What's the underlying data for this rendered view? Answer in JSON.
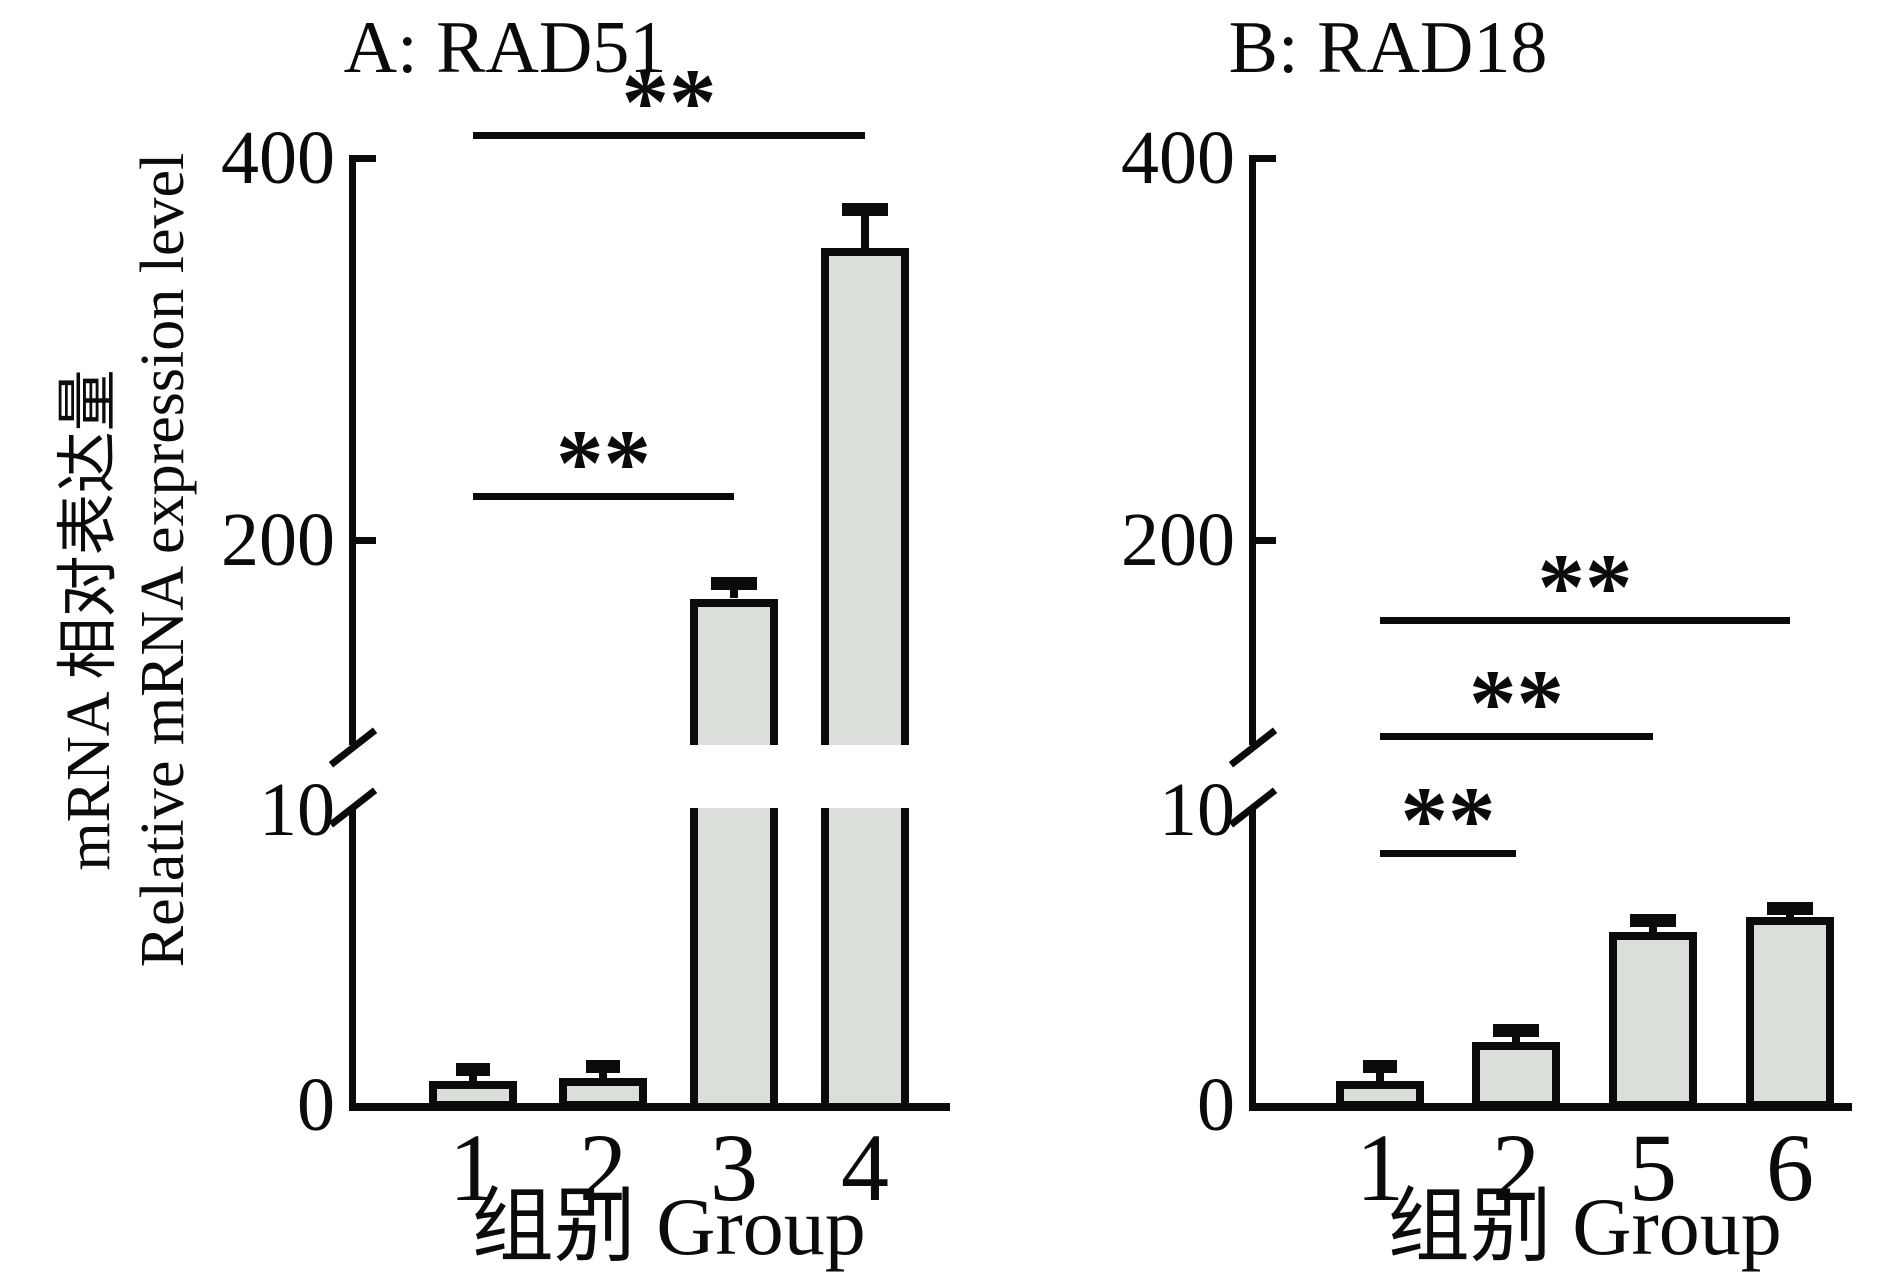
{
  "figure": {
    "background": "#ffffff",
    "ink_color": "#0b0b0b",
    "bar_fill_color": "#dadfda",
    "y_axis_label_zh": "mRNA 相对表达量",
    "y_axis_label_en": "Relative mRNA expression level"
  },
  "chart_data": [
    {
      "panel": "A",
      "type": "bar",
      "title": "A: RAD51",
      "xlabel": "组别 Group",
      "ylabel": "mRNA 相对表达量 Relative mRNA expression level",
      "categories": [
        "1",
        "2",
        "3",
        "4"
      ],
      "values": [
        0.8,
        0.9,
        170,
        350
      ],
      "errors": [
        0.4,
        0.4,
        8,
        20
      ],
      "y_axis": {
        "type": "broken",
        "tick_labels": [
          "400",
          "200",
          "10",
          "0"
        ],
        "lower_range": [
          0,
          10
        ],
        "upper_range": [
          200,
          400
        ]
      },
      "significance": [
        {
          "between": [
            "1",
            "3"
          ],
          "label": "**"
        },
        {
          "between": [
            "1",
            "4"
          ],
          "label": "**"
        }
      ],
      "grid": false,
      "legend_position": "none"
    },
    {
      "panel": "B",
      "type": "bar",
      "title": "B: RAD18",
      "xlabel": "组别 Group",
      "ylabel": "mRNA 相对表达量 Relative mRNA expression level",
      "categories": [
        "1",
        "2",
        "5",
        "6"
      ],
      "values": [
        0.8,
        2.1,
        5.8,
        6.3
      ],
      "errors": [
        0.5,
        0.4,
        0.4,
        0.3
      ],
      "y_axis": {
        "type": "broken",
        "tick_labels": [
          "400",
          "200",
          "10",
          "0"
        ],
        "lower_range": [
          0,
          10
        ],
        "upper_range": [
          200,
          400
        ]
      },
      "significance": [
        {
          "between": [
            "1",
            "2"
          ],
          "label": "**"
        },
        {
          "between": [
            "1",
            "5"
          ],
          "label": "**"
        },
        {
          "between": [
            "1",
            "6"
          ],
          "label": "**"
        }
      ],
      "grid": false,
      "legend_position": "none"
    }
  ]
}
